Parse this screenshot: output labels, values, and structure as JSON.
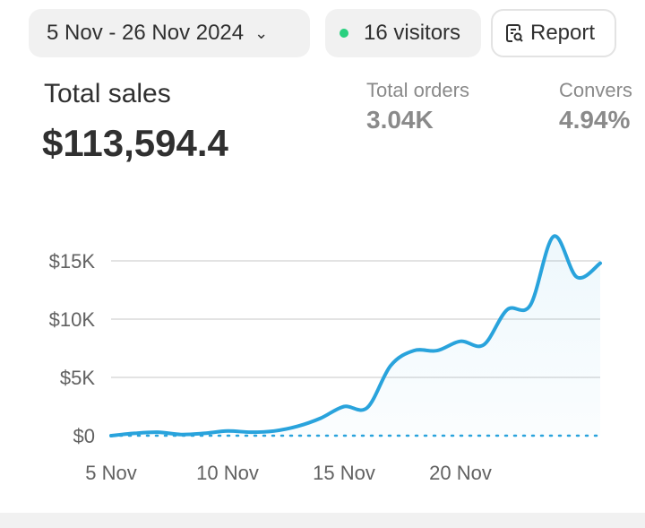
{
  "header": {
    "date_range": "5 Nov - 26 Nov 2024",
    "visitors": "16 visitors",
    "report_label": "Report"
  },
  "metrics": {
    "total_sales": {
      "label": "Total sales",
      "value": "$113,594.4"
    },
    "total_orders": {
      "label": "Total orders",
      "value": "3.04K"
    },
    "conversion": {
      "label": "Convers",
      "value": "4.94%"
    }
  },
  "colors": {
    "line": "#29a3dc",
    "live_dot": "#29d07f"
  },
  "chart_data": {
    "type": "area",
    "title": "Total sales",
    "x": [
      "5 Nov",
      "6 Nov",
      "7 Nov",
      "8 Nov",
      "9 Nov",
      "10 Nov",
      "11 Nov",
      "12 Nov",
      "13 Nov",
      "14 Nov",
      "15 Nov",
      "16 Nov",
      "17 Nov",
      "18 Nov",
      "19 Nov",
      "20 Nov",
      "21 Nov",
      "22 Nov",
      "23 Nov",
      "24 Nov",
      "25 Nov",
      "26 Nov"
    ],
    "values": [
      0,
      200,
      300,
      100,
      200,
      400,
      300,
      400,
      800,
      1500,
      2500,
      2400,
      6000,
      7300,
      7300,
      8100,
      7800,
      10800,
      11200,
      17100,
      13600,
      14800
    ],
    "xticks": [
      "5 Nov",
      "10 Nov",
      "15 Nov",
      "20 Nov"
    ],
    "xtick_index": [
      0,
      5,
      10,
      15
    ],
    "yticks": [
      0,
      5000,
      10000,
      15000
    ],
    "ytick_labels": [
      "$0",
      "$5K",
      "$10K",
      "$15K"
    ],
    "ylim": [
      0,
      18000
    ],
    "grid": true,
    "xlabel": "",
    "ylabel": ""
  }
}
